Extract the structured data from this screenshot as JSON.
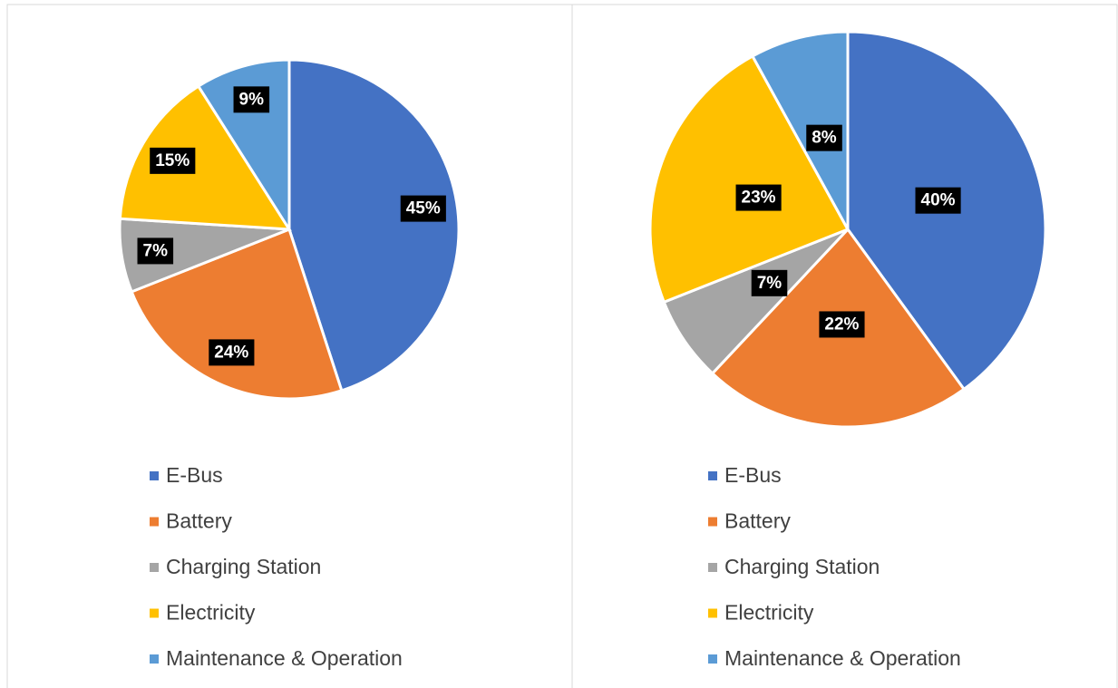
{
  "chart_data": [
    {
      "type": "pie",
      "categories": [
        "E-Bus",
        "Battery",
        "Charging Station",
        "Electricity",
        "Maintenance & Operation"
      ],
      "values": [
        45,
        24,
        7,
        15,
        9
      ],
      "value_labels": [
        "45%",
        "24%",
        "7%",
        "15%",
        "9%"
      ],
      "colors": [
        "#4472c4",
        "#ed7d31",
        "#a5a5a5",
        "#ffc000",
        "#5b9bd5"
      ],
      "legend": "bottom"
    },
    {
      "type": "pie",
      "categories": [
        "E-Bus",
        "Battery",
        "Charging Station",
        "Electricity",
        "Maintenance & Operation"
      ],
      "values": [
        40,
        22,
        7,
        23,
        8
      ],
      "value_labels": [
        "40%",
        "22%",
        "7%",
        "23%",
        "8%"
      ],
      "colors": [
        "#4472c4",
        "#ed7d31",
        "#a5a5a5",
        "#ffc000",
        "#5b9bd5"
      ],
      "legend": "bottom"
    }
  ]
}
